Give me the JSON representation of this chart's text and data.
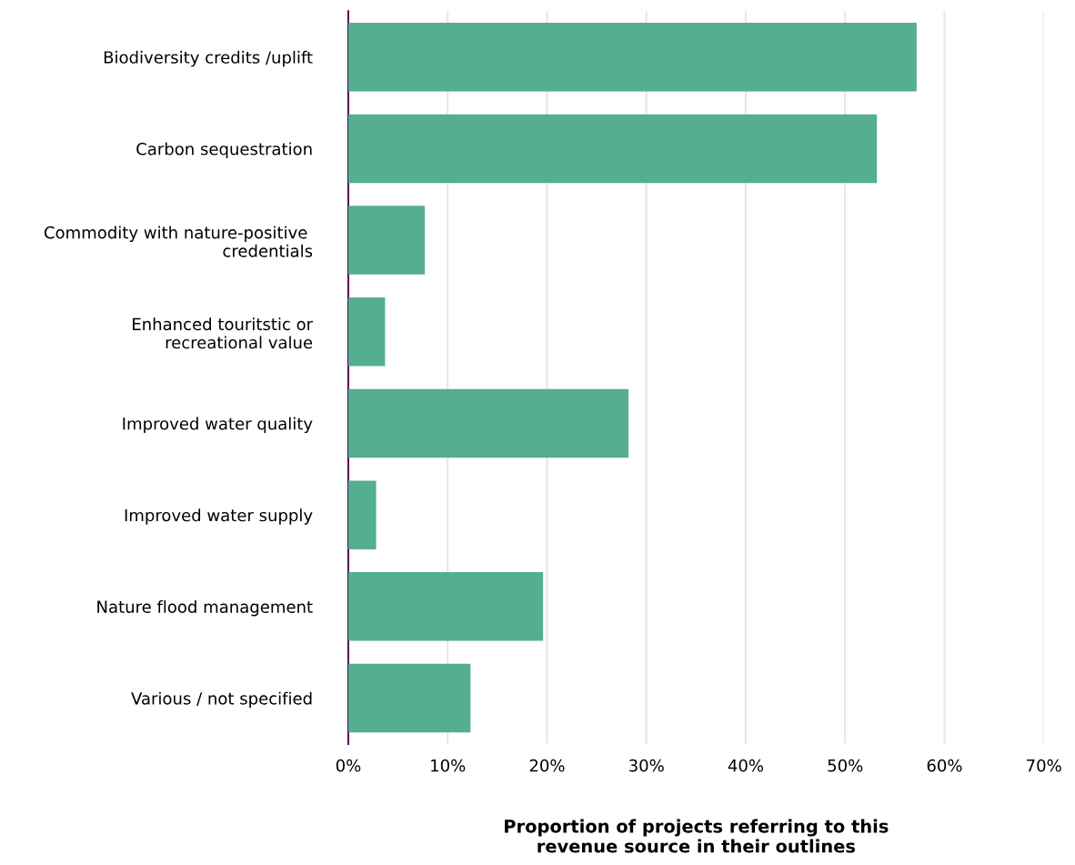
{
  "chart_data": {
    "type": "bar",
    "orientation": "horizontal",
    "xlabel": "Proportion of projects referring to this\nrevenue source in their outlines",
    "categories": [
      "Biodiversity credits /uplift",
      "Carbon sequestration",
      "Commodity with nature-positive \ncredentials",
      "Enhanced touritstic or\nrecreational value",
      "Improved water quality",
      "Improved water supply",
      "Nature flood management",
      "Various / not specified"
    ],
    "values": [
      57.2,
      53.2,
      7.7,
      3.7,
      28.2,
      2.8,
      19.6,
      12.3
    ],
    "color": "#54ae8f",
    "xlim": [
      0,
      70
    ],
    "xticks": [
      {
        "value": 0,
        "label": "0%"
      },
      {
        "value": 10,
        "label": "10%"
      },
      {
        "value": 20,
        "label": "20%"
      },
      {
        "value": 30,
        "label": "30%"
      },
      {
        "value": 40,
        "label": "40%"
      },
      {
        "value": 50,
        "label": "50%"
      },
      {
        "value": 60,
        "label": "60%"
      },
      {
        "value": 70,
        "label": "70%"
      }
    ],
    "grid": "x",
    "legend": false
  }
}
